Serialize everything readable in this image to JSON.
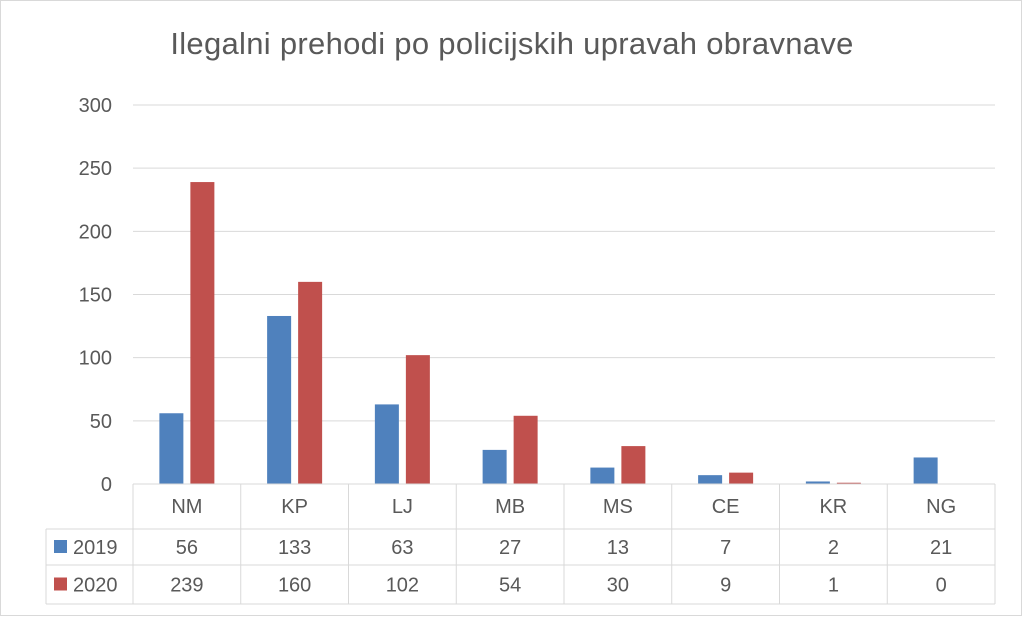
{
  "chart_data": {
    "type": "bar",
    "title": "Ilegalni prehodi po policijskih upravah obravnave",
    "categories": [
      "NM",
      "KP",
      "LJ",
      "MB",
      "MS",
      "CE",
      "KR",
      "NG"
    ],
    "series": [
      {
        "name": "2019",
        "color": "#4f81bd",
        "values": [
          56,
          133,
          63,
          27,
          13,
          7,
          2,
          21
        ]
      },
      {
        "name": "2020",
        "color": "#c0504d",
        "values": [
          239,
          160,
          102,
          54,
          30,
          9,
          1,
          0
        ]
      }
    ],
    "yticks": [
      "0",
      "50",
      "100",
      "150",
      "200",
      "250",
      "300"
    ],
    "ylim": [
      0,
      300
    ],
    "grid": true,
    "legend": "data-table"
  }
}
